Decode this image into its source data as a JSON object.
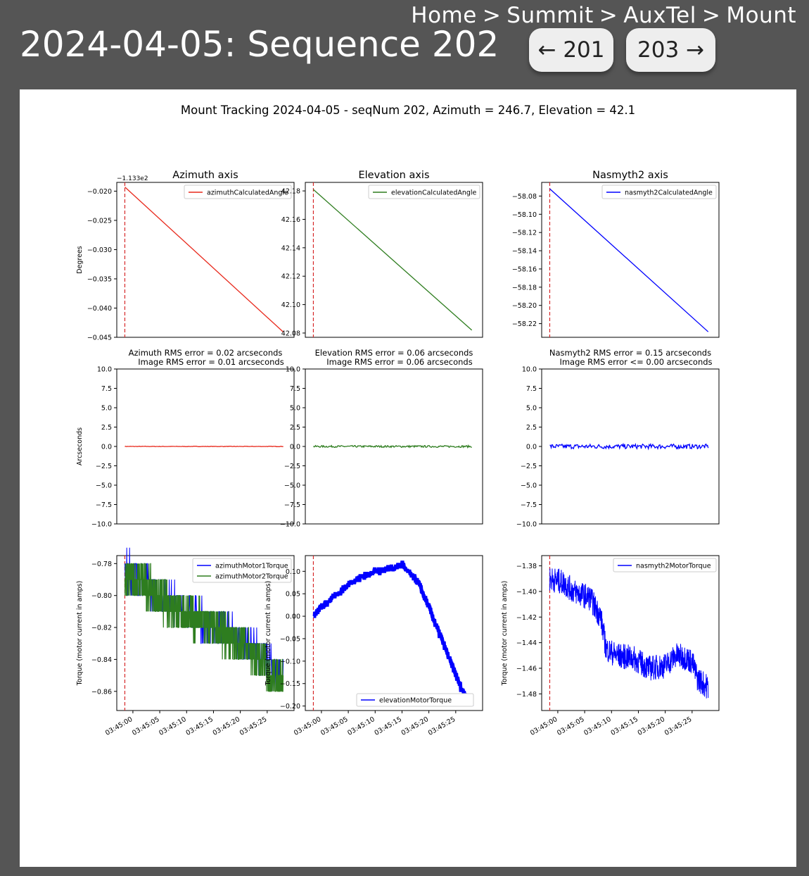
{
  "breadcrumb": {
    "home": "Home",
    "summit": "Summit",
    "auxtel": "AuxTel",
    "mount": "Mount",
    "sep": ">"
  },
  "page_title": "2024-04-05: Sequence 202",
  "nav": {
    "prev_label": "← 201",
    "next_label": "203 →"
  },
  "colors": {
    "azimuth": "#e8291c",
    "elevation": "#2e7d1f",
    "nasmyth": "#0000ff",
    "motor1": "#0000ff",
    "motor2": "#2e7d1f",
    "marker": "#d62728"
  },
  "chart_data": {
    "type": "line",
    "suptitle": "Mount Tracking 2024-04-05 - seqNum 202, Azimuth = 246.7, Elevation = 42.1",
    "x_ticks": [
      "03:45:00",
      "03:45:05",
      "03:45:10",
      "03:45:15",
      "03:45:20",
      "03:45:25"
    ],
    "angle_row": {
      "ylabel": "Degrees",
      "panels": [
        {
          "title": "Azimuth axis",
          "offset_label": "−1.133e2",
          "ylim": [
            -0.045,
            -0.0185
          ],
          "yticks": [
            "−0.020",
            "−0.025",
            "−0.030",
            "−0.035",
            "−0.040",
            "−0.045"
          ],
          "ytick_values": [
            -0.02,
            -0.025,
            -0.03,
            -0.035,
            -0.04,
            -0.045
          ],
          "legend": "azimuthCalculatedAngle",
          "series": [
            {
              "x": [
                -1.5,
                28
              ],
              "y": [
                -0.0193,
                -0.0441
              ]
            }
          ]
        },
        {
          "title": "Elevation axis",
          "offset_label": "",
          "ylim": [
            42.077,
            42.186
          ],
          "yticks": [
            "42.18",
            "42.16",
            "42.14",
            "42.12",
            "42.10",
            "42.08"
          ],
          "ytick_values": [
            42.18,
            42.16,
            42.14,
            42.12,
            42.1,
            42.08
          ],
          "legend": "elevationCalculatedAngle",
          "series": [
            {
              "x": [
                -1.5,
                28
              ],
              "y": [
                42.181,
                42.082
              ]
            }
          ]
        },
        {
          "title": "Nasmyth2 axis",
          "offset_label": "",
          "ylim": [
            -58.235,
            -58.065
          ],
          "yticks": [
            "−58.08",
            "−58.10",
            "−58.12",
            "−58.14",
            "−58.16",
            "−58.18",
            "−58.20",
            "−58.22"
          ],
          "ytick_values": [
            -58.08,
            -58.1,
            -58.12,
            -58.14,
            -58.16,
            -58.18,
            -58.2,
            -58.22
          ],
          "legend": "nasmyth2CalculatedAngle",
          "series": [
            {
              "x": [
                -1.5,
                28
              ],
              "y": [
                -58.072,
                -58.229
              ]
            }
          ]
        }
      ]
    },
    "error_row": {
      "ylabel": "Arcseconds",
      "ylim": [
        -10,
        10
      ],
      "yticks": [
        "10.0",
        "7.5",
        "5.0",
        "2.5",
        "0.0",
        "−2.5",
        "−5.0",
        "−7.5",
        "−10.0"
      ],
      "ytick_values": [
        10,
        7.5,
        5,
        2.5,
        0,
        -2.5,
        -5,
        -7.5,
        -10
      ],
      "panels": [
        {
          "title_line1": "Azimuth RMS error = 0.02 arcseconds",
          "title_line2": "Image RMS error = 0.01 arcseconds",
          "amplitude": 0.03
        },
        {
          "title_line1": "Elevation RMS error = 0.06 arcseconds",
          "title_line2": "Image RMS error = 0.06 arcseconds",
          "amplitude": 0.12
        },
        {
          "title_line1": "Nasmyth2 RMS error = 0.15 arcseconds",
          "title_line2": "Image RMS error <= 0.00 arcseconds",
          "amplitude": 0.3
        }
      ]
    },
    "torque_row": {
      "ylabel": "Torque (motor current in amps)",
      "panels": [
        {
          "ylim": [
            -0.872,
            -0.775
          ],
          "yticks": [
            "−0.78",
            "−0.80",
            "−0.82",
            "−0.84",
            "−0.86"
          ],
          "ytick_values": [
            -0.78,
            -0.8,
            -0.82,
            -0.84,
            -0.86
          ],
          "legend": [
            "azimuthMotor1Torque",
            "azimuthMotor2Torque"
          ],
          "series": [
            {
              "name": "azimuthMotor1Torque",
              "x": [
                -1.5,
                2,
                5,
                10,
                16,
                19,
                23,
                26,
                28
              ],
              "y": [
                -0.785,
                -0.79,
                -0.8,
                -0.81,
                -0.82,
                -0.825,
                -0.835,
                -0.845,
                -0.85
              ]
            },
            {
              "name": "azimuthMotor2Torque",
              "x": [
                -1.5,
                2,
                5,
                10,
                16,
                19,
                23,
                26,
                28
              ],
              "y": [
                -0.79,
                -0.792,
                -0.802,
                -0.812,
                -0.822,
                -0.828,
                -0.838,
                -0.85,
                -0.852
              ]
            }
          ]
        },
        {
          "ylim": [
            -0.21,
            0.135
          ],
          "yticks": [
            "0.10",
            "0.05",
            "0.00",
            "−0.05",
            "−0.10",
            "−0.15",
            "−0.20"
          ],
          "ytick_values": [
            0.1,
            0.05,
            0,
            -0.05,
            -0.1,
            -0.15,
            -0.2
          ],
          "legend": [
            "elevationMotorTorque"
          ],
          "series": [
            {
              "name": "elevationMotorTorque",
              "x": [
                -1.5,
                0,
                2,
                4,
                6,
                8,
                10,
                12,
                14,
                15,
                16,
                18,
                20,
                22,
                24,
                26,
                28
              ],
              "y": [
                0.0,
                0.02,
                0.04,
                0.06,
                0.08,
                0.09,
                0.1,
                0.105,
                0.11,
                0.115,
                0.1,
                0.075,
                0.02,
                -0.04,
                -0.1,
                -0.16,
                -0.195
              ]
            }
          ]
        },
        {
          "ylim": [
            -1.493,
            -1.372
          ],
          "yticks": [
            "−1.38",
            "−1.40",
            "−1.42",
            "−1.44",
            "−1.46",
            "−1.48"
          ],
          "ytick_values": [
            -1.38,
            -1.4,
            -1.42,
            -1.44,
            -1.46,
            -1.48
          ],
          "legend": [
            "nasmyth2MotorTorque"
          ],
          "series": [
            {
              "name": "nasmyth2MotorTorque",
              "x": [
                -1.5,
                1,
                3,
                6,
                8,
                9,
                11,
                14,
                17,
                20,
                22,
                24,
                25,
                26,
                28
              ],
              "y": [
                -1.39,
                -1.393,
                -1.4,
                -1.405,
                -1.42,
                -1.445,
                -1.45,
                -1.452,
                -1.46,
                -1.458,
                -1.45,
                -1.452,
                -1.455,
                -1.468,
                -1.475
              ]
            }
          ]
        }
      ]
    }
  }
}
